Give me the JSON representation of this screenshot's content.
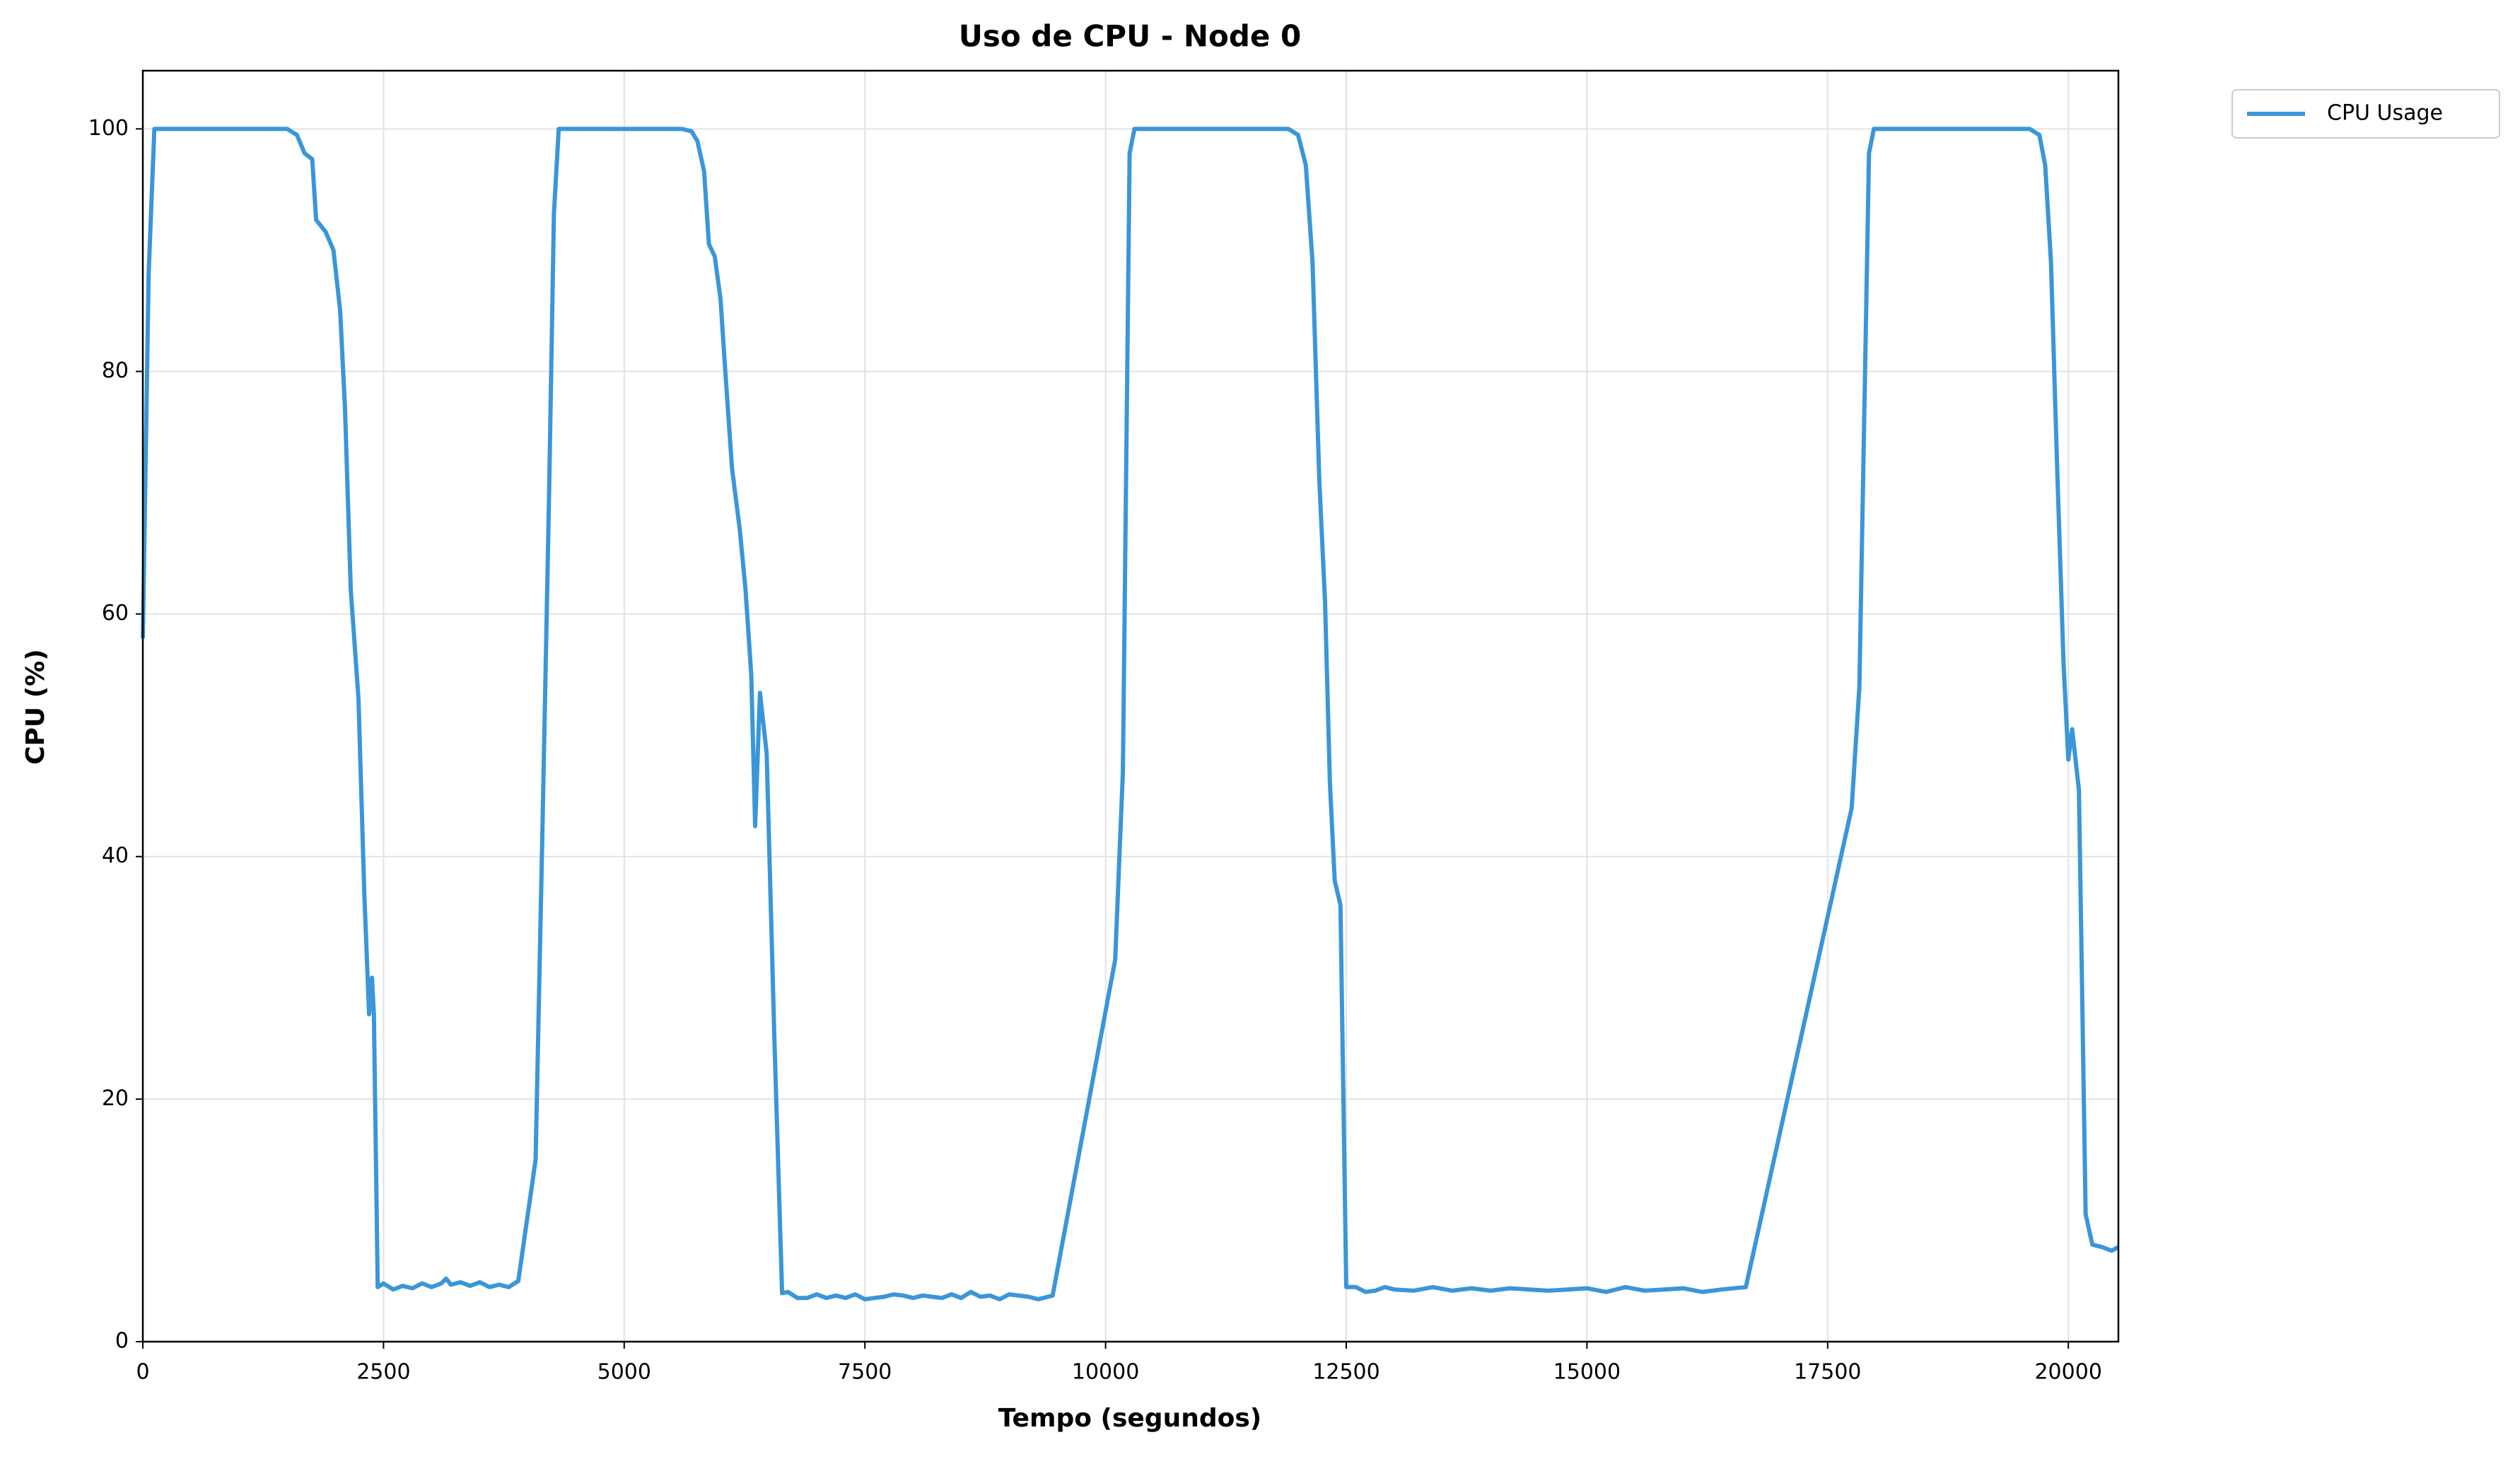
{
  "chart_data": {
    "type": "line",
    "title": "Uso de CPU - Node 0",
    "xlabel": "Tempo (segundos)",
    "ylabel": "CPU (%)",
    "x": [
      0,
      60,
      120,
      300,
      600,
      900,
      1200,
      1500,
      1600,
      1680,
      1760,
      1800,
      1900,
      1980,
      2050,
      2100,
      2160,
      2240,
      2300,
      2350,
      2380,
      2400,
      2440,
      2500,
      2600,
      2700,
      2800,
      2900,
      3000,
      3100,
      3150,
      3200,
      3300,
      3400,
      3500,
      3600,
      3700,
      3800,
      3900,
      4080,
      4150,
      4220,
      4270,
      4320,
      4400,
      4600,
      5000,
      5400,
      5600,
      5700,
      5760,
      5830,
      5880,
      5940,
      6000,
      6050,
      6120,
      6200,
      6260,
      6320,
      6360,
      6410,
      6480,
      6560,
      6640,
      6700,
      6800,
      6900,
      7000,
      7100,
      7200,
      7300,
      7400,
      7500,
      7600,
      7700,
      7800,
      7900,
      8000,
      8100,
      8200,
      8300,
      8400,
      8500,
      8600,
      8700,
      8800,
      8900,
      9000,
      9100,
      9200,
      9300,
      9450,
      10100,
      10180,
      10250,
      10300,
      10600,
      11000,
      11500,
      11900,
      12000,
      12080,
      12150,
      12220,
      12280,
      12330,
      12380,
      12440,
      12500,
      12600,
      12700,
      12800,
      12900,
      13000,
      13200,
      13400,
      13600,
      13800,
      14000,
      14200,
      14400,
      14600,
      14800,
      15000,
      15200,
      15400,
      15600,
      15800,
      16000,
      16200,
      16400,
      16650,
      17750,
      17830,
      17930,
      17980,
      18200,
      18600,
      19000,
      19400,
      19600,
      19700,
      19760,
      19820,
      19880,
      19950,
      20000,
      20040,
      20110,
      20180,
      20250,
      20350,
      20450,
      20520
    ],
    "series": [
      {
        "name": "CPU Usage",
        "color": "#3a96d8",
        "values": [
          58,
          88,
          100,
          100,
          100,
          100,
          100,
          100,
          99.5,
          98,
          97.5,
          92.5,
          91.5,
          90,
          85,
          77,
          62,
          53,
          37,
          27,
          30,
          27,
          4.5,
          4.8,
          4.3,
          4.6,
          4.4,
          4.8,
          4.5,
          4.8,
          5.2,
          4.7,
          4.9,
          4.6,
          4.9,
          4.5,
          4.7,
          4.5,
          5,
          15,
          42,
          70,
          93,
          100,
          100,
          100,
          100,
          100,
          100,
          99.8,
          99,
          96.5,
          90.5,
          89.5,
          86,
          80,
          72,
          67,
          62,
          55,
          42.5,
          53.5,
          48.5,
          25,
          4,
          4.1,
          3.6,
          3.6,
          3.9,
          3.6,
          3.8,
          3.6,
          3.9,
          3.5,
          3.6,
          3.7,
          3.9,
          3.8,
          3.6,
          3.8,
          3.7,
          3.6,
          3.9,
          3.6,
          4.1,
          3.7,
          3.8,
          3.5,
          3.9,
          3.8,
          3.7,
          3.5,
          3.8,
          31.5,
          47,
          98,
          100,
          100,
          100,
          100,
          100,
          99.5,
          97,
          89,
          71,
          61,
          46,
          38,
          36,
          4.5,
          4.5,
          4.1,
          4.2,
          4.5,
          4.3,
          4.2,
          4.5,
          4.2,
          4.4,
          4.2,
          4.4,
          4.3,
          4.2,
          4.3,
          4.4,
          4.1,
          4.5,
          4.2,
          4.3,
          4.4,
          4.1,
          4.3,
          4.5,
          44,
          54,
          98,
          100,
          100,
          100,
          100,
          100,
          100,
          99.5,
          97,
          89,
          73,
          56,
          48,
          50.5,
          45.5,
          10.5,
          8,
          7.8,
          7.5,
          7.8
        ]
      }
    ],
    "xlim": [
      0,
      20520
    ],
    "ylim": [
      0,
      104.8
    ],
    "xticks": [
      0,
      2500,
      5000,
      7500,
      10000,
      12500,
      15000,
      17500,
      20000
    ],
    "yticks": [
      0,
      20,
      40,
      60,
      80,
      100
    ],
    "grid": true,
    "legend": "upper right outside"
  }
}
